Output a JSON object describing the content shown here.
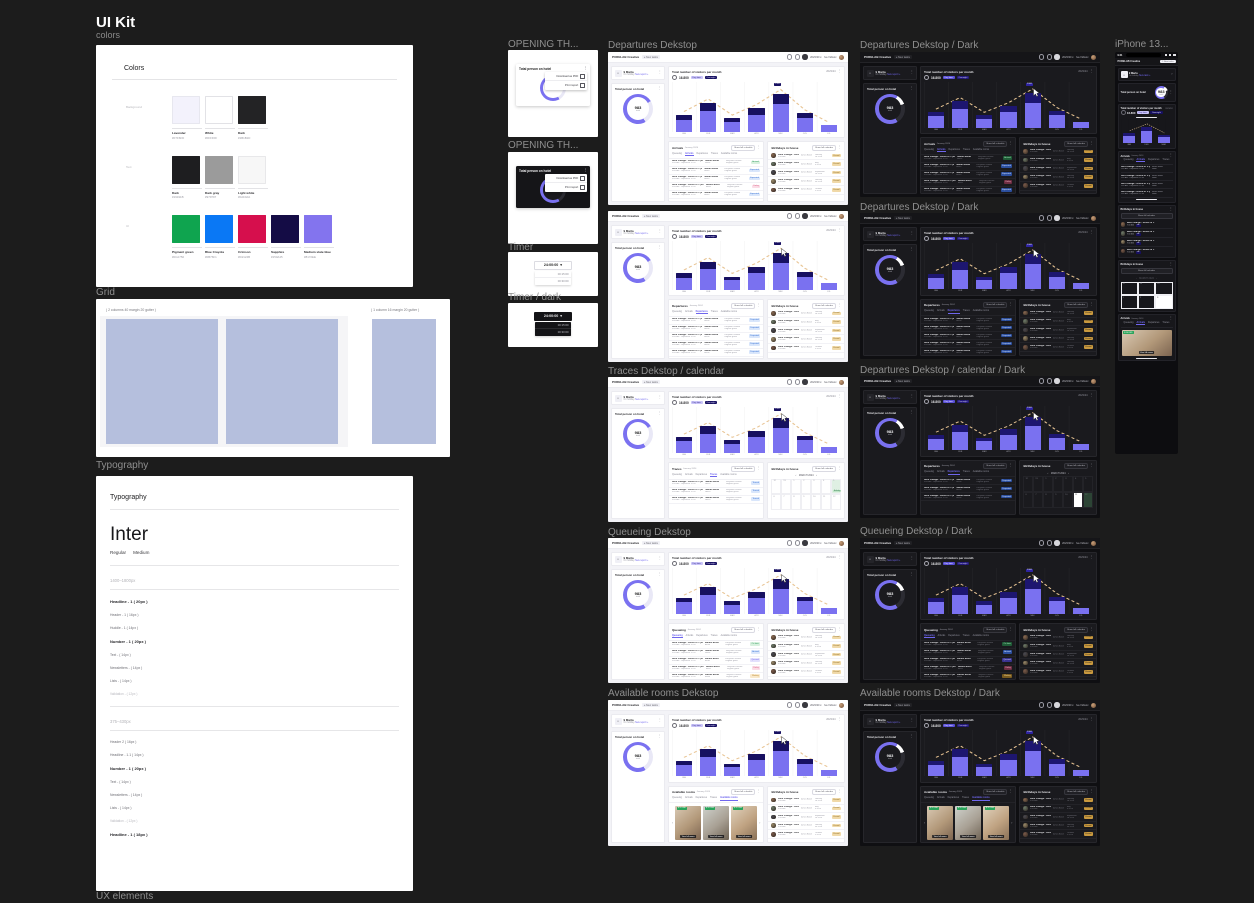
{
  "canvas": {
    "title": "UI Kit",
    "subtitle": "colors"
  },
  "section_labels": {
    "grid": "Grid",
    "typography": "Typography",
    "ux": "UX elements"
  },
  "colors_frame": {
    "heading": "Colors",
    "groups": [
      {
        "label": "Background",
        "swatches": [
          {
            "name": "Lavender",
            "hex": "#F7F6FD",
            "fill": "#f3f2fc",
            "border": "#e7e7ef"
          },
          {
            "name": "White",
            "hex": "#FFFFFF",
            "fill": "#ffffff",
            "border": "#e2e2e6"
          },
          {
            "name": "Dark",
            "hex": "#1B1B1D",
            "fill": "#232325",
            "border": "#232325"
          }
        ]
      },
      {
        "label": "Text",
        "swatches": [
          {
            "name": "Dark",
            "hex": "#19191B",
            "fill": "#1e1e20",
            "border": "#1e1e20"
          },
          {
            "name": "Dark gray",
            "hex": "#979797",
            "fill": "#9b9b9b",
            "border": "#9b9b9b"
          },
          {
            "name": "Light white",
            "hex": "#FAFAFA",
            "fill": "#f7f7f7",
            "border": "#e8e8ea"
          }
        ]
      },
      {
        "label": "UI",
        "swatches": [
          {
            "name": "Pigment green",
            "hex": "#0CA750",
            "fill": "#0fa44f",
            "border": "#0fa44f"
          },
          {
            "name": "Blue Crayola",
            "hex": "#0B76F1",
            "fill": "#0a78f5",
            "border": "#0a78f5"
          },
          {
            "name": "Crimson",
            "hex": "#D2124B",
            "fill": "#d60f4d",
            "border": "#d60f4d"
          },
          {
            "name": "Sapphire",
            "hex": "#150A45",
            "fill": "#140c45",
            "border": "#140c45"
          },
          {
            "name": "Medium slate blue",
            "hex": "#8172EE",
            "fill": "#8374ee",
            "border": "#8374ee"
          }
        ]
      }
    ]
  },
  "grid_frame": {
    "left_caption": "( 2 columns 40 margin 20 gutter )",
    "right_caption": "( 1 column 16 margin 20 gutter )"
  },
  "typography_frame": {
    "heading": "Typography",
    "font_name": "Inter",
    "weights": [
      "Regular",
      "Medium"
    ],
    "sections": [
      {
        "range": "1400–1800px",
        "specs": [
          {
            "t": "Headline - 1 ( 20px )",
            "s": "b"
          },
          {
            "t": "Header - 1 ( 16px )",
            "s": "m"
          },
          {
            "t": "Huddle - 1 ( 14px )",
            "s": "m"
          },
          {
            "t": "Number - 1 ( 20px )",
            "s": "b"
          },
          {
            "t": "Text - ( 14px )",
            "s": "m"
          },
          {
            "t": "Newsletters - ( 14px )",
            "s": "m"
          },
          {
            "t": "Lists - ( 14px )",
            "s": "m"
          },
          {
            "t": "Validation - ( 12px )",
            "s": "l"
          }
        ]
      },
      {
        "range": "375–430px",
        "specs": [
          {
            "t": "Header 2 ( 16px )",
            "s": "m"
          },
          {
            "t": "Headline - 1.1 ( 14px )",
            "s": "m"
          },
          {
            "t": "Number - 1 ( 20px )",
            "s": "b"
          },
          {
            "t": "Text - ( 14px )",
            "s": "m"
          },
          {
            "t": "Newsletters - ( 14px )",
            "s": "m"
          },
          {
            "t": "Lists - ( 14px )",
            "s": "m"
          },
          {
            "t": "Validation - ( 12px )",
            "s": "l"
          },
          {
            "t": "Headline - 1 ( 18px )",
            "s": "b"
          }
        ]
      }
    ]
  },
  "mid_column": {
    "frames": [
      {
        "label": "OPENING TH..."
      },
      {
        "label": "OPENING TH..."
      },
      {
        "label": "Timer"
      },
      {
        "label": "Timer / dark"
      }
    ],
    "widget": {
      "title": "Total person on hotel",
      "menu": [
        "Download as PDF",
        "Print report"
      ],
      "gauge_value": "98%",
      "gauge_sub": "total"
    },
    "timer": {
      "value": "24:00:00",
      "options": [
        "00:15:00",
        "00:30:00"
      ]
    }
  },
  "dashboard": {
    "brand": "PURELAB Creative",
    "nav_item": "New tasks",
    "topbar": {
      "period": "2023/30",
      "user": "Iva Vidovic"
    },
    "greeting": {
      "name": "9 Marta",
      "status": "On holiday",
      "link": "New report +"
    },
    "gauge": {
      "title": "Total person on hotel",
      "value": "983",
      "sub": "total"
    },
    "chart": {
      "title": "Total number of visitors per month",
      "kpi": "16.800",
      "period": "2023/24",
      "peak": "1.900",
      "legend": [
        "Day time",
        "Overnight"
      ],
      "months": [
        "JAN",
        "FEB",
        "MAR",
        "APR",
        "MAY",
        "JUN",
        "JUL"
      ]
    },
    "buttons": {
      "table": "Show full schedule",
      "calendar": "Show full calendar"
    },
    "tabs": [
      "Queueing",
      "Arrivals",
      "Departures",
      "Traces",
      "Available rooms"
    ],
    "dates_label": "January 2024",
    "table_row": {
      "c1": "Rent change · Room nr 1 (2C)",
      "c1b": "9:00 AM · Departure 12:45",
      "c2": "James Bond",
      "c2b": "Berlin",
      "c3": "Fairytale/Creative",
      "c3b": "Regular guest"
    },
    "birthdays": {
      "title": "Birthdays in house",
      "row_name": "Rent change · Room nr 1",
      "row_time": "9:00 AM",
      "guest": "James Bond",
      "badge": "VIP",
      "chip": "E-mail",
      "dates": [
        [
          "January",
          "18 2024"
        ],
        [
          "May",
          "4 2024"
        ],
        [
          "September",
          "16 2024"
        ],
        [
          "January",
          "30 2024"
        ],
        [
          "October",
          "5 2024"
        ]
      ]
    },
    "calendar": {
      "month": "MARCH 2024",
      "rows": [
        [
          "12",
          "13",
          "1",
          "2",
          "3",
          "4",
          "5"
        ],
        [
          "6",
          "7",
          "8",
          "9",
          "10",
          "11",
          "12"
        ]
      ],
      "highlight_chip": "Birthday"
    },
    "rooms": {
      "price": "$ 20 USD",
      "caption": "View full rooms"
    }
  },
  "chart_data": {
    "type": "bar",
    "title": "Total number of visitors per month",
    "categories": [
      "JAN",
      "FEB",
      "MAR",
      "APR",
      "MAY",
      "JUN",
      "JUL"
    ],
    "series": [
      {
        "name": "Day time",
        "values": [
          620,
          1050,
          500,
          860,
          1380,
          680,
          330
        ]
      },
      {
        "name": "Overnight",
        "values": [
          230,
          400,
          180,
          320,
          520,
          250,
          0
        ]
      }
    ],
    "peak_label": "1.900",
    "legend_position": "top",
    "note": "stacked purple/navy bars with dashed trend line, repeated in every dashboard thumbnail"
  },
  "frames": {
    "light": [
      {
        "label": "Departures Dekstop",
        "table_title": "Arrivals",
        "active_tab": "Arrivals",
        "bottom": "table",
        "cursor": false,
        "chips": [
          [
            "Arrived",
            "green"
          ],
          [
            "Expected",
            "blue"
          ],
          [
            "Expected",
            "blue"
          ],
          [
            "Delay",
            "pink"
          ],
          [
            "Expected",
            "blue"
          ]
        ]
      },
      {
        "label": "",
        "table_title": "Departures",
        "active_tab": "Departures",
        "bottom": "table",
        "cursor": true,
        "chips": [
          [
            "Departed",
            "blue"
          ],
          [
            "Departed",
            "blue"
          ],
          [
            "Departed",
            "blue"
          ],
          [
            "Departed",
            "blue"
          ],
          [
            "Departed",
            "blue"
          ]
        ]
      },
      {
        "label": "Traces Dekstop / calendar",
        "table_title": "Traces",
        "active_tab": "Traces",
        "bottom": "calendar",
        "cursor": true,
        "chips": [
          [
            "Traced",
            "blue"
          ],
          [
            "Traced",
            "blue"
          ],
          [
            "Traced",
            "blue"
          ]
        ]
      },
      {
        "label": "Queueing Dekstop",
        "table_title": "Queueing",
        "active_tab": "Queueing",
        "bottom": "table",
        "cursor": true,
        "chips": [
          [
            "On time",
            "green"
          ],
          [
            "Arrived",
            "blue"
          ],
          [
            "Queued",
            "purple"
          ],
          [
            "Delay",
            "pink"
          ],
          [
            "Waiting",
            "orange"
          ]
        ]
      },
      {
        "label": "Available rooms Dekstop",
        "table_title": "Available rooms",
        "active_tab": "Available rooms",
        "bottom": "rooms",
        "cursor": true,
        "chips": []
      }
    ],
    "dark": [
      {
        "label": "Departures Dekstop / Dark",
        "table_title": "Arrivals",
        "active_tab": "Arrivals",
        "bottom": "table",
        "cursor": true,
        "chips": [
          [
            "Arrived",
            "green"
          ],
          [
            "Expected",
            "blue"
          ],
          [
            "Expected",
            "blue"
          ],
          [
            "Delay",
            "pink"
          ],
          [
            "Expected",
            "blue"
          ]
        ]
      },
      {
        "label": "Departures Dekstop / Dark",
        "table_title": "Departures",
        "active_tab": "Departures",
        "bottom": "table",
        "cursor": true,
        "chips": [
          [
            "Departed",
            "blue"
          ],
          [
            "Departed",
            "blue"
          ],
          [
            "Departed",
            "blue"
          ],
          [
            "Departed",
            "blue"
          ],
          [
            "Departed",
            "blue"
          ]
        ]
      },
      {
        "label": "Departures Dekstop / calendar / Dark",
        "table_title": "Departures",
        "active_tab": "Departures",
        "bottom": "calendar",
        "cursor": true,
        "chips": [
          [
            "Departed",
            "blue"
          ],
          [
            "Departed",
            "blue"
          ],
          [
            "Departed",
            "blue"
          ]
        ]
      },
      {
        "label": "Queueing Dekstop / Dark",
        "table_title": "Queueing",
        "active_tab": "Queueing",
        "bottom": "table",
        "cursor": true,
        "chips": [
          [
            "On time",
            "green"
          ],
          [
            "Arrived",
            "blue"
          ],
          [
            "Queued",
            "purple"
          ],
          [
            "Delay",
            "pink"
          ],
          [
            "Waiting",
            "orange"
          ]
        ]
      },
      {
        "label": "Available rooms Dekstop / Dark",
        "table_title": "Available rooms",
        "active_tab": "Available rooms",
        "bottom": "rooms",
        "cursor": true,
        "chips": []
      }
    ],
    "phone_label": "iPhone 13..."
  },
  "phone": {
    "status_time": "9:41",
    "greeting_link": "New task +",
    "chart_months": [
      "JAN",
      "FEB",
      "MAR"
    ],
    "tabs": [
      "Queueing",
      "Arrivals",
      "Departures",
      "Traces"
    ],
    "calendar_cells": [
      "12",
      "13",
      "14",
      "1",
      "2",
      "3"
    ],
    "rooms_caption": "View full rooms"
  }
}
